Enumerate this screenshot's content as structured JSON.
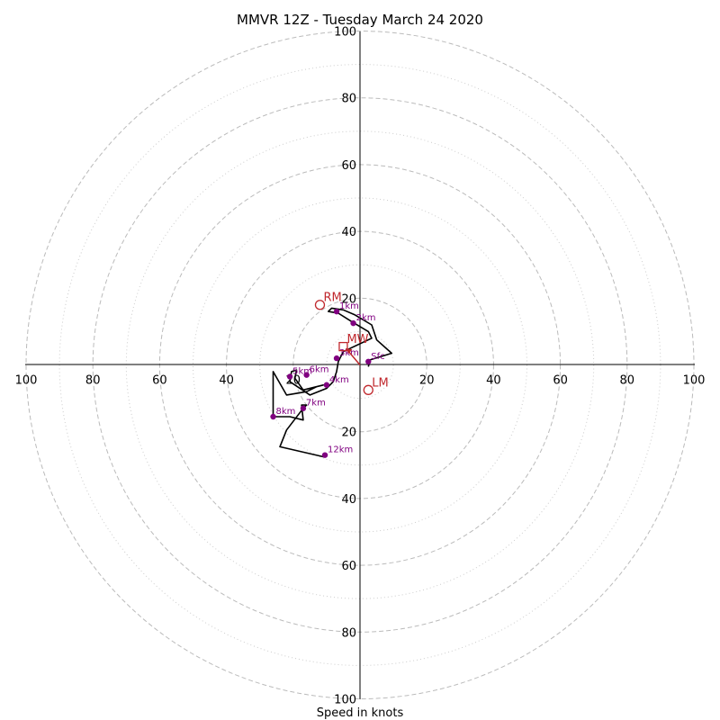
{
  "chart_data": {
    "type": "hodograph",
    "title": "MMVR 12Z - Tuesday March 24 2020",
    "xlabel": "Speed in knots",
    "range": [
      -100,
      100
    ],
    "ring_major": [
      20,
      40,
      60,
      80,
      100
    ],
    "ring_minor": [
      10,
      30,
      50,
      70,
      90
    ],
    "tick_values": [
      100,
      80,
      60,
      40,
      20
    ],
    "tick_labels": [
      "100",
      "80",
      "60",
      "40",
      "20"
    ],
    "colors": {
      "trace": "#000000",
      "height_points": "#800080",
      "motion": "#c0282d",
      "grid": "#bbbbbb"
    },
    "trace": [
      [
        2.5,
        -0.5
      ],
      [
        3,
        1.5
      ],
      [
        9.5,
        3.5
      ],
      [
        5,
        7.5
      ],
      [
        3.5,
        12
      ],
      [
        -1.5,
        15
      ],
      [
        -5,
        16.5
      ],
      [
        -8.5,
        17
      ],
      [
        -9.5,
        16
      ],
      [
        -6.5,
        15.5
      ],
      [
        -2.5,
        13
      ],
      [
        2.5,
        10
      ],
      [
        3.5,
        8
      ],
      [
        -5,
        4
      ],
      [
        -6.5,
        1
      ],
      [
        -7,
        -2
      ],
      [
        -8,
        -5
      ],
      [
        -10,
        -7
      ],
      [
        -15,
        -9
      ],
      [
        -21,
        -5
      ],
      [
        -20.5,
        -2
      ],
      [
        -19,
        -1.5
      ],
      [
        -19.5,
        -4
      ],
      [
        -17,
        -7.5
      ],
      [
        -11,
        -6
      ],
      [
        -13,
        -6.5
      ],
      [
        -16,
        -8
      ],
      [
        -22,
        -9
      ],
      [
        -26,
        -2
      ],
      [
        -26,
        -9
      ],
      [
        -26,
        -15.5
      ],
      [
        -21,
        -15.5
      ],
      [
        -17,
        -16.5
      ],
      [
        -17.5,
        -12
      ],
      [
        -16,
        -12
      ],
      [
        -17,
        -13
      ],
      [
        -22,
        -19.5
      ],
      [
        -24,
        -24.5
      ],
      [
        -11,
        -27.5
      ],
      [
        -10.5,
        -27
      ]
    ],
    "height_points": [
      {
        "label": "Sfc",
        "u": 2.5,
        "v": 1
      },
      {
        "label": "1km",
        "u": -7,
        "v": 16
      },
      {
        "label": "2km",
        "u": -2,
        "v": 12.5
      },
      {
        "label": "3km",
        "u": -7,
        "v": 2
      },
      {
        "label": "4km",
        "u": -10,
        "v": -6
      },
      {
        "label": "5km",
        "u": -21,
        "v": -3.5
      },
      {
        "label": "6km",
        "u": -16,
        "v": -3
      },
      {
        "label": "7km",
        "u": -17,
        "v": -13
      },
      {
        "label": "8km",
        "u": -26,
        "v": -15.5
      },
      {
        "label": "12km",
        "u": -10.5,
        "v": -27
      }
    ],
    "storm_motions": [
      {
        "label": "RM",
        "u": -12,
        "v": 18,
        "marker": "circle"
      },
      {
        "label": "LM",
        "u": 2.5,
        "v": -7.5,
        "marker": "circle"
      },
      {
        "label": "MW",
        "u": -5,
        "v": 5.5,
        "marker": "square"
      }
    ],
    "mean_vector": {
      "u": -5,
      "v": 5.5
    }
  }
}
